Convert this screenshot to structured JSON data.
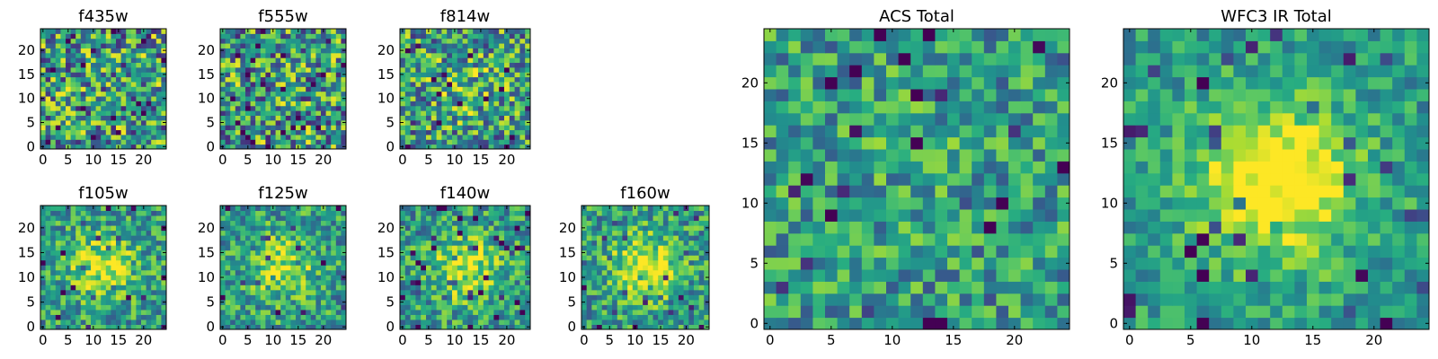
{
  "chart_data": [
    {
      "type": "heatmap",
      "id": "f435w",
      "title": "f435w",
      "grid_size": 25,
      "xlim": [
        0,
        24
      ],
      "ylim": [
        0,
        24
      ],
      "xticks": [
        0,
        5,
        10,
        15,
        20
      ],
      "yticks": [
        0,
        5,
        10,
        15,
        20
      ],
      "cmap": "viridis",
      "center_intensity": 0.0,
      "noise": 0.55,
      "seed": 11
    },
    {
      "type": "heatmap",
      "id": "f555w",
      "title": "f555w",
      "grid_size": 25,
      "xlim": [
        0,
        24
      ],
      "ylim": [
        0,
        24
      ],
      "xticks": [
        0,
        5,
        10,
        15,
        20
      ],
      "yticks": [
        0,
        5,
        10,
        15,
        20
      ],
      "cmap": "viridis",
      "center_intensity": 0.0,
      "noise": 0.55,
      "seed": 23
    },
    {
      "type": "heatmap",
      "id": "f814w",
      "title": "f814w",
      "grid_size": 25,
      "xlim": [
        0,
        24
      ],
      "ylim": [
        0,
        24
      ],
      "xticks": [
        0,
        5,
        10,
        15,
        20
      ],
      "yticks": [
        0,
        5,
        10,
        15,
        20
      ],
      "cmap": "viridis",
      "center_intensity": 0.15,
      "noise": 0.5,
      "seed": 37
    },
    {
      "type": "heatmap",
      "id": "f105w",
      "title": "f105w",
      "grid_size": 25,
      "xlim": [
        0,
        24
      ],
      "ylim": [
        0,
        24
      ],
      "xticks": [
        0,
        5,
        10,
        15,
        20
      ],
      "yticks": [
        0,
        5,
        10,
        15,
        20
      ],
      "cmap": "viridis",
      "center_intensity": 0.4,
      "noise": 0.35,
      "seed": 41
    },
    {
      "type": "heatmap",
      "id": "f125w",
      "title": "f125w",
      "grid_size": 25,
      "xlim": [
        0,
        24
      ],
      "ylim": [
        0,
        24
      ],
      "xticks": [
        0,
        5,
        10,
        15,
        20
      ],
      "yticks": [
        0,
        5,
        10,
        15,
        20
      ],
      "cmap": "viridis",
      "center_intensity": 0.35,
      "noise": 0.35,
      "seed": 53
    },
    {
      "type": "heatmap",
      "id": "f140w",
      "title": "f140w",
      "grid_size": 25,
      "xlim": [
        0,
        24
      ],
      "ylim": [
        0,
        24
      ],
      "xticks": [
        0,
        5,
        10,
        15,
        20
      ],
      "yticks": [
        0,
        5,
        10,
        15,
        20
      ],
      "cmap": "viridis",
      "center_intensity": 0.4,
      "noise": 0.35,
      "seed": 67
    },
    {
      "type": "heatmap",
      "id": "f160w",
      "title": "f160w",
      "grid_size": 25,
      "xlim": [
        0,
        24
      ],
      "ylim": [
        0,
        24
      ],
      "xticks": [
        0,
        5,
        10,
        15,
        20
      ],
      "yticks": [
        0,
        5,
        10,
        15,
        20
      ],
      "cmap": "viridis",
      "center_intensity": 0.45,
      "noise": 0.35,
      "seed": 79
    },
    {
      "type": "heatmap",
      "id": "acs-total",
      "title": "ACS Total",
      "grid_size": 25,
      "xlim": [
        0,
        24
      ],
      "ylim": [
        0,
        24
      ],
      "xticks": [
        0,
        5,
        10,
        15,
        20
      ],
      "yticks": [
        0,
        5,
        10,
        15,
        20
      ],
      "cmap": "viridis",
      "center_intensity": 0.05,
      "noise": 0.35,
      "seed": 97
    },
    {
      "type": "heatmap",
      "id": "wfc3-ir-total",
      "title": "WFC3 IR Total",
      "grid_size": 25,
      "xlim": [
        0,
        24
      ],
      "ylim": [
        0,
        24
      ],
      "xticks": [
        0,
        5,
        10,
        15,
        20
      ],
      "yticks": [
        0,
        5,
        10,
        15,
        20
      ],
      "cmap": "viridis",
      "center_intensity": 0.6,
      "noise": 0.25,
      "seed": 101
    }
  ]
}
